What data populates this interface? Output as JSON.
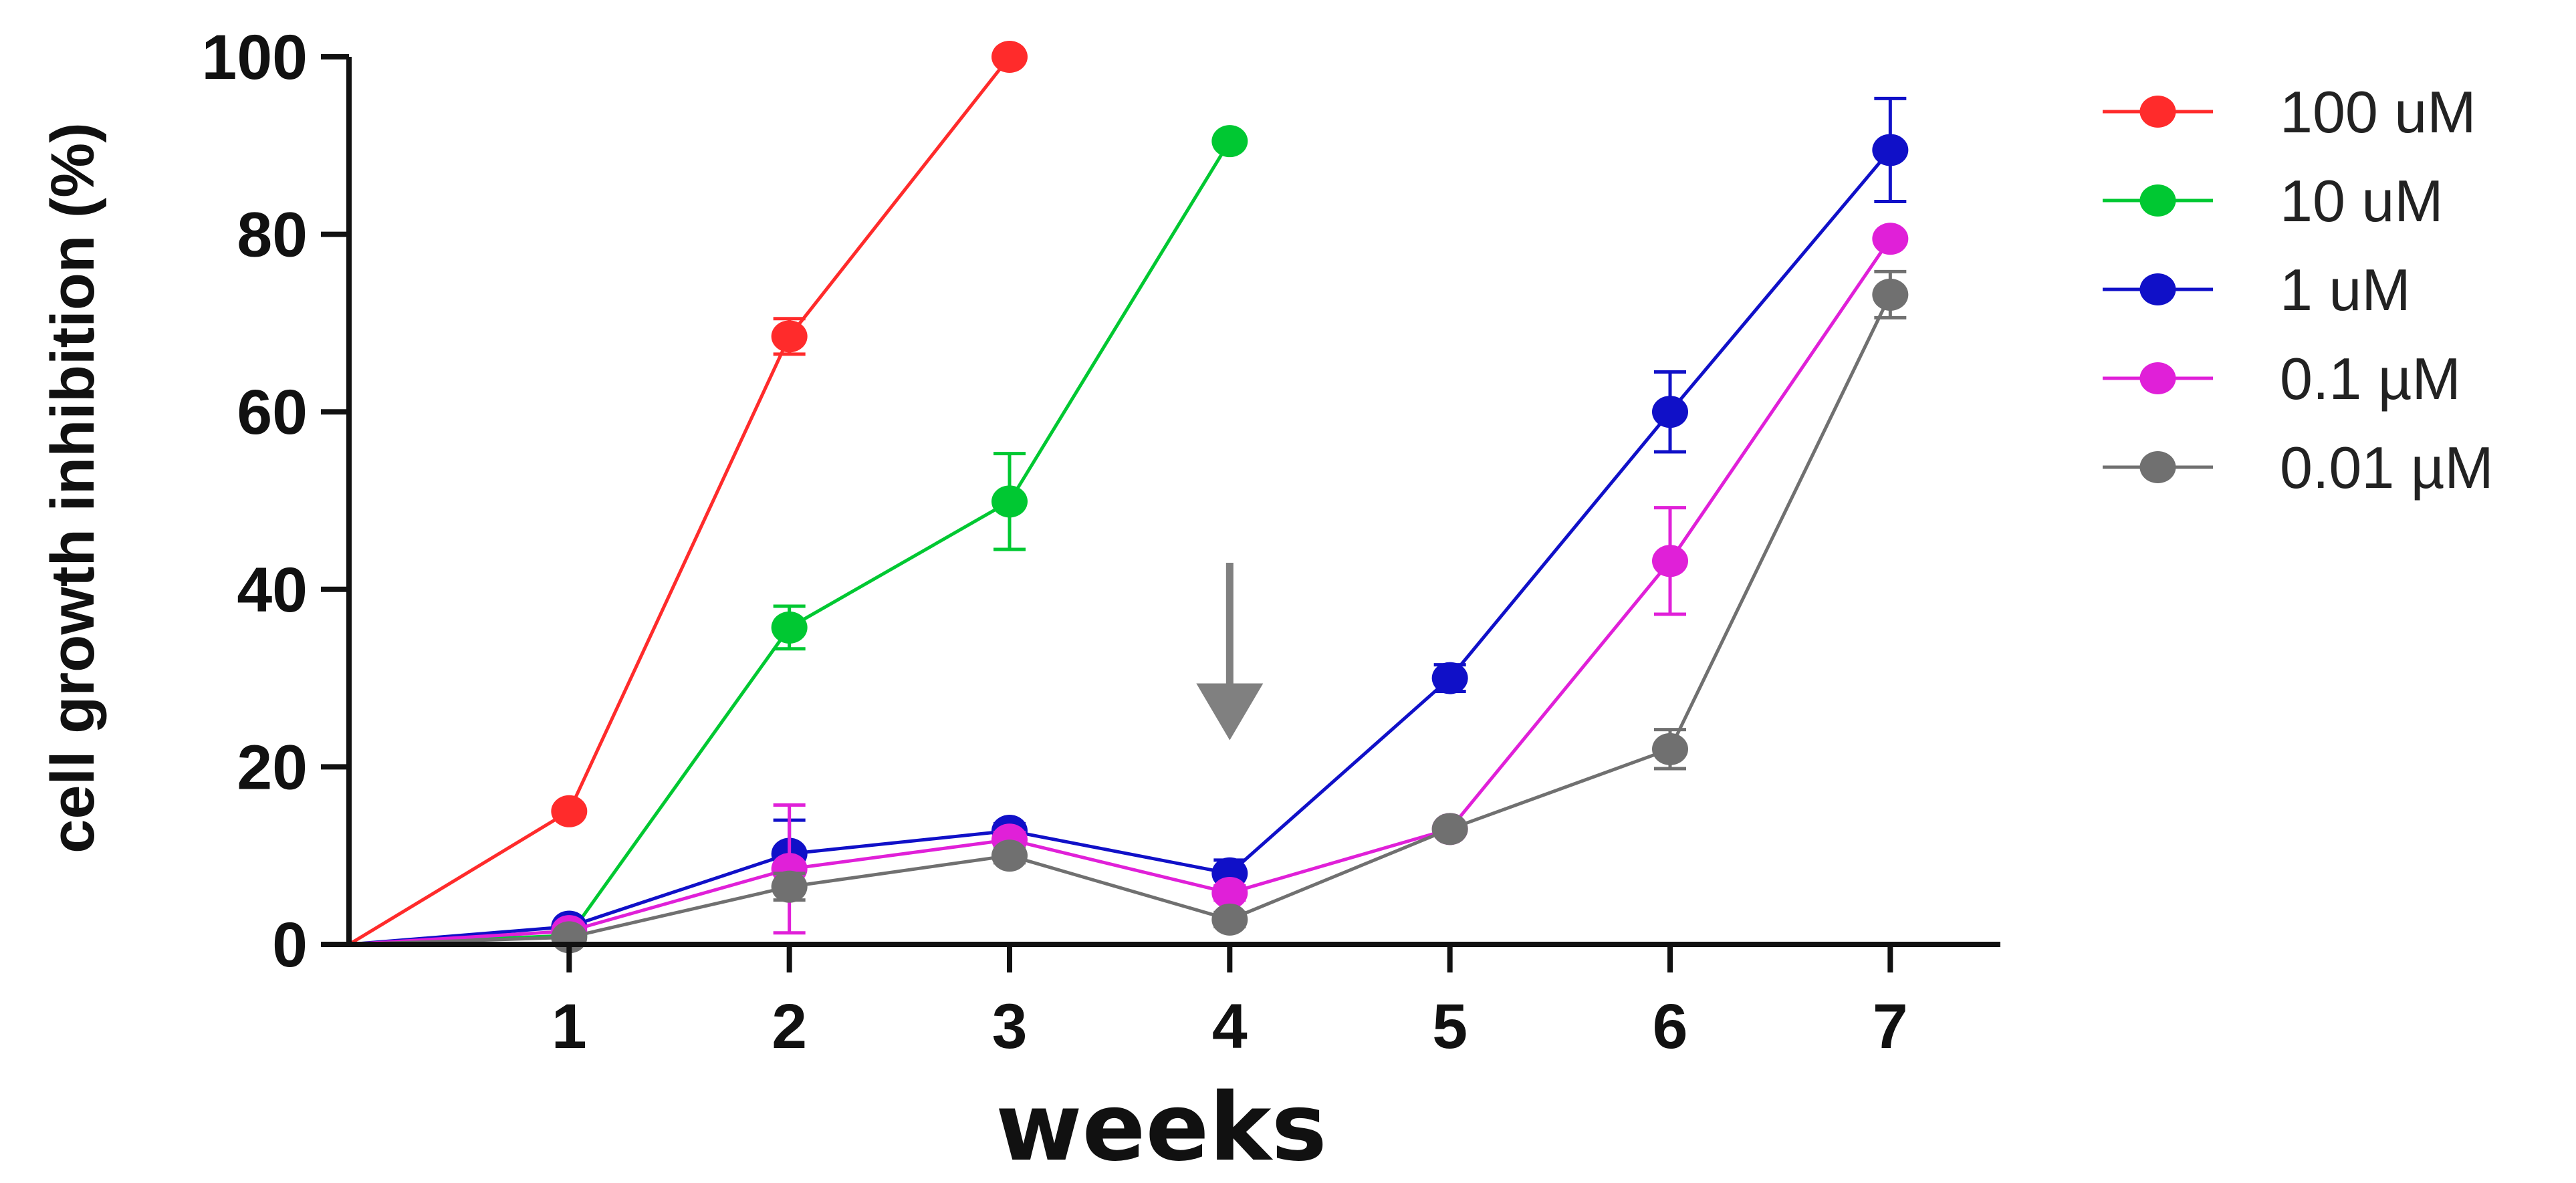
{
  "chart_data": {
    "type": "line",
    "title": "",
    "xlabel": "weeks",
    "ylabel": "cell growth inhibition (%)",
    "x_ticks": [
      1,
      2,
      3,
      4,
      5,
      6,
      7
    ],
    "y_ticks": [
      0,
      20,
      40,
      60,
      80,
      100
    ],
    "xlim": [
      0,
      7.5
    ],
    "ylim": [
      0,
      100
    ],
    "legend_position": "right",
    "annotations": [
      {
        "type": "arrow",
        "direction": "down",
        "x": 4,
        "y_from": 43,
        "y_to": 23,
        "color": "#808080"
      }
    ],
    "series": [
      {
        "name": "100 uM",
        "color": "#ff2b2b",
        "x": [
          0,
          1,
          2,
          3
        ],
        "values": [
          0,
          15,
          68.5,
          100
        ],
        "errors": [
          0,
          0,
          2,
          0
        ]
      },
      {
        "name": "10 uM",
        "color": "#00c832",
        "x": [
          0,
          1,
          2,
          3,
          4
        ],
        "values": [
          0,
          1,
          35.7,
          49.9,
          90.5
        ],
        "errors": [
          0,
          0,
          2.4,
          5.4,
          0
        ]
      },
      {
        "name": "1 uM",
        "color": "#1010c8",
        "x": [
          0,
          1,
          2,
          3,
          4,
          5,
          6,
          7
        ],
        "values": [
          0,
          2,
          10.2,
          12.8,
          8,
          30,
          60,
          89.5
        ],
        "errors": [
          0,
          0,
          3.8,
          0.8,
          1.5,
          1.5,
          4.5,
          5.8
        ]
      },
      {
        "name": "0.1 µM",
        "color": "#e020d8",
        "x": [
          0,
          1,
          2,
          3,
          4,
          5,
          6,
          7
        ],
        "values": [
          0,
          1.5,
          8.5,
          11.8,
          5.8,
          13,
          43.2,
          79.5
        ],
        "errors": [
          0,
          0,
          7.2,
          0.8,
          0.8,
          0,
          6,
          0
        ]
      },
      {
        "name": "0.01 µM",
        "color": "#707070",
        "x": [
          0,
          1,
          2,
          3,
          4,
          5,
          6,
          7
        ],
        "values": [
          0,
          0.8,
          6.5,
          10,
          2.8,
          13,
          22,
          73.2
        ],
        "errors": [
          0,
          0,
          1.5,
          0.8,
          0.8,
          0,
          2.2,
          2.6
        ]
      }
    ]
  }
}
